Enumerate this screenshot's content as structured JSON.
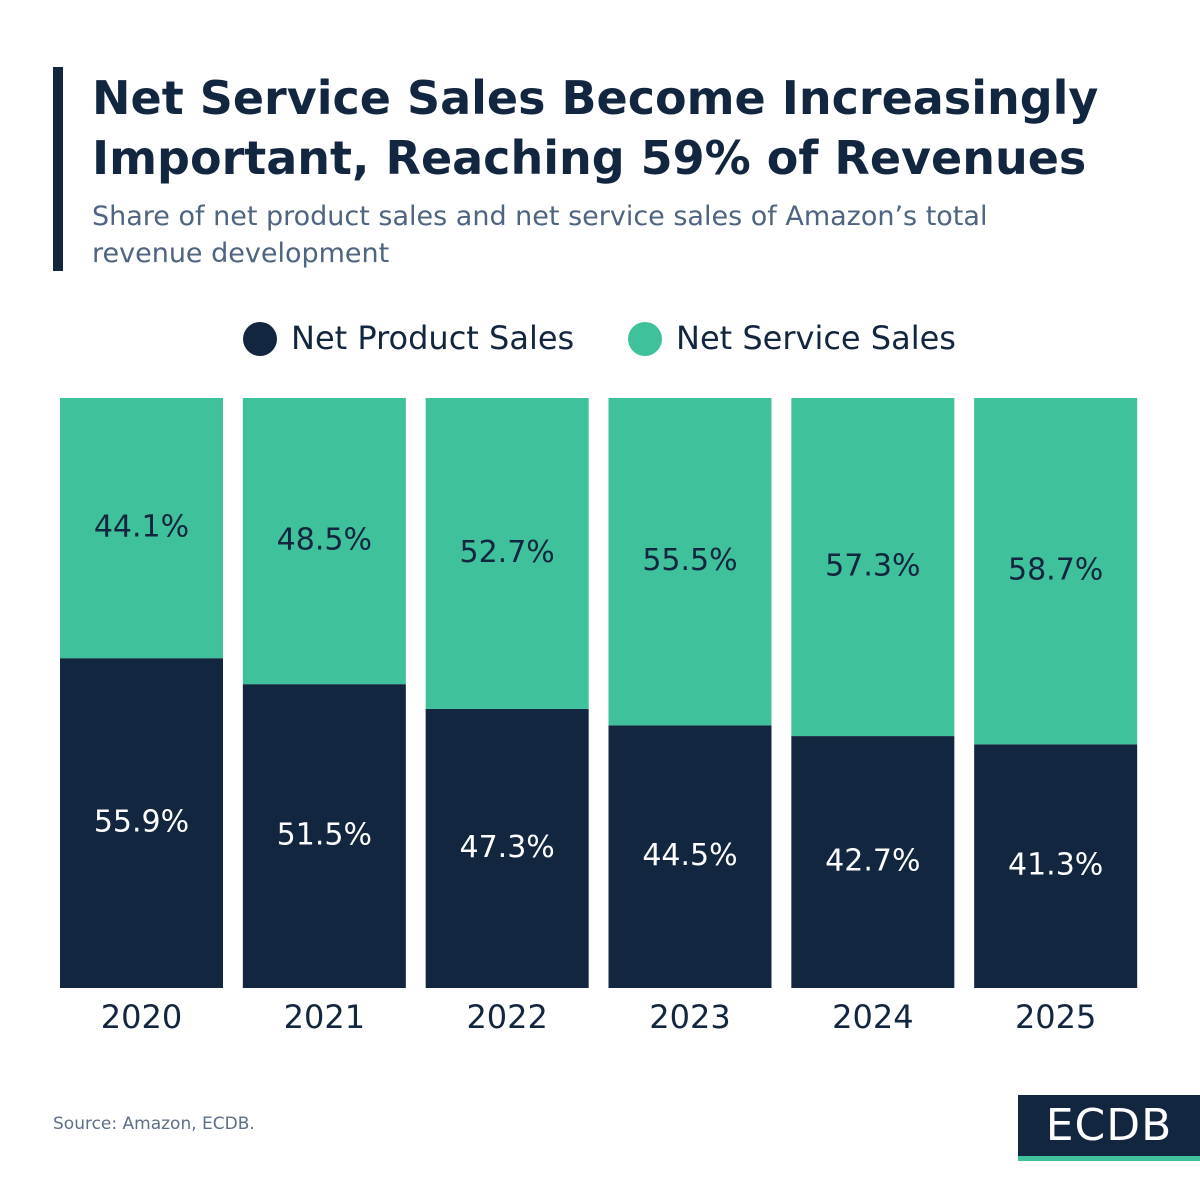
{
  "chart_data": {
    "type": "stacked-bar",
    "title": "Net Service Sales Become Increasingly Important, Reaching 59% of Revenues",
    "subtitle": "Share of net product sales and net service sales of Amazon’s total revenue development",
    "categories": [
      "2020",
      "2021",
      "2022",
      "2023",
      "2024",
      "2025"
    ],
    "series": [
      {
        "name": "Net Product Sales",
        "color": "#13263f",
        "values": [
          55.9,
          51.5,
          47.3,
          44.5,
          42.7,
          41.3
        ],
        "value_labels": [
          "55.9%",
          "51.5%",
          "47.3%",
          "44.5%",
          "42.7%",
          "41.3%"
        ]
      },
      {
        "name": "Net Service Sales",
        "color": "#3fc19b",
        "values": [
          44.1,
          48.5,
          52.7,
          55.5,
          57.3,
          58.7
        ],
        "value_labels": [
          "44.1%",
          "48.5%",
          "52.7%",
          "55.5%",
          "57.3%",
          "58.7%"
        ]
      }
    ],
    "ylim": [
      0,
      100
    ],
    "legend": "top",
    "source": "Source: Amazon, ECDB.",
    "brand": "ECDB"
  }
}
